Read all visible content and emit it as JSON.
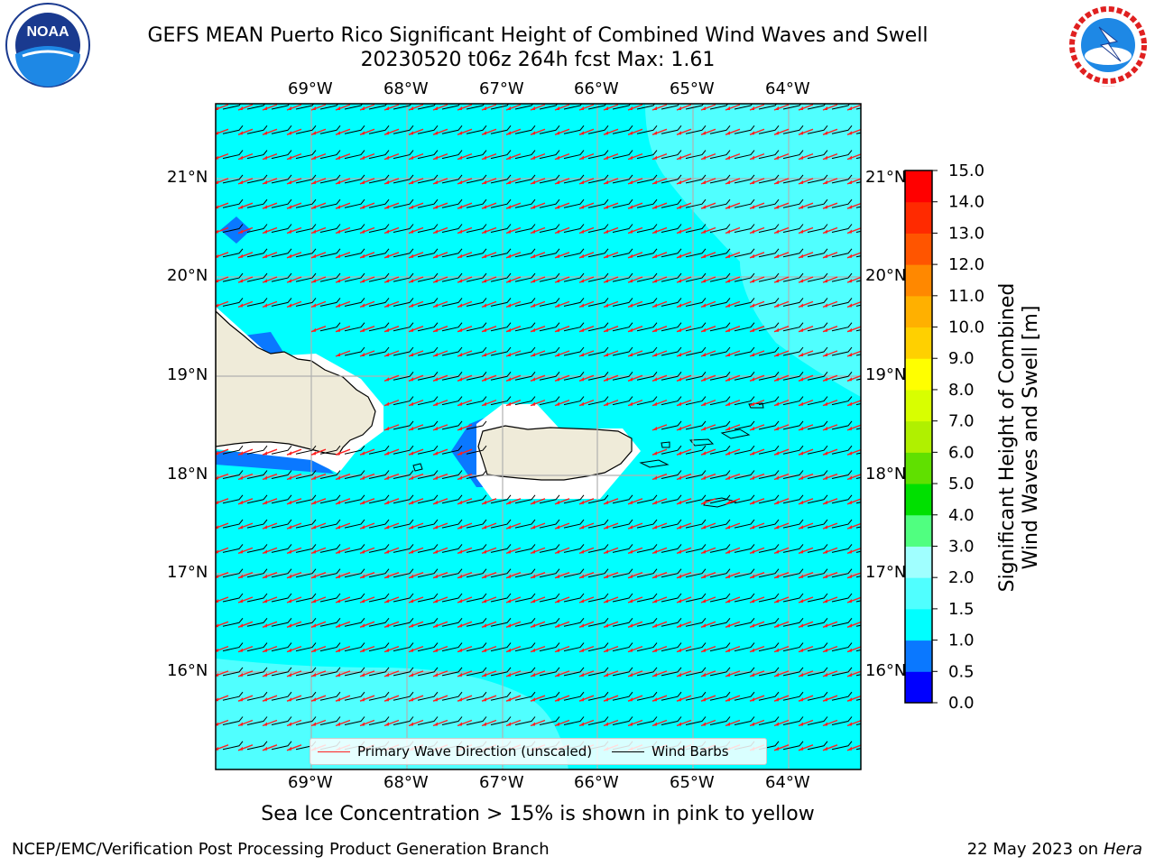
{
  "title_line1": "GEFS MEAN Puerto Rico Significant Height of Combined Wind Waves and Swell",
  "title_line2": "20230520 t06z 264h fcst   Max: 1.61",
  "lon_ticks": [
    "69°W",
    "68°W",
    "67°W",
    "66°W",
    "65°W",
    "64°W"
  ],
  "lat_ticks": [
    "21°N",
    "20°N",
    "19°N",
    "18°N",
    "17°N",
    "16°N"
  ],
  "legend": {
    "primary_wave": "Primary Wave Direction (unscaled)",
    "wind_barbs": "Wind Barbs",
    "primary_wave_color": "#ff2020",
    "wind_barbs_color": "#000000"
  },
  "colorbar": {
    "label_line1": "Significant Height of Combined",
    "label_line2": "Wind Waves and Swell [m]",
    "ticks": [
      "0.0",
      "0.5",
      "1.0",
      "1.5",
      "2.0",
      "3.0",
      "4.0",
      "5.0",
      "6.0",
      "7.0",
      "8.0",
      "9.0",
      "10.0",
      "11.0",
      "12.0",
      "13.0",
      "14.0",
      "15.0"
    ],
    "colors": [
      "#0000ff",
      "#0a78ff",
      "#00ffff",
      "#50ffff",
      "#a0ffff",
      "#50ff80",
      "#00e000",
      "#60e000",
      "#b0f000",
      "#d8ff00",
      "#ffff00",
      "#ffd000",
      "#ffb000",
      "#ff8800",
      "#ff5500",
      "#ff2a00",
      "#ff0000"
    ]
  },
  "map": {
    "ocean_color": "#00ffff",
    "land_color": "#efebd9",
    "lighter_wave_color": "#50ffff",
    "grid_color": "#b0b0b0"
  },
  "caption": "Sea Ice Concentration > 15% is shown in pink to yellow",
  "footer_left": "NCEP/EMC/Verification Post Processing Product Generation Branch",
  "footer_date": "22 May 2023 on",
  "footer_machine": "Hera",
  "logos": {
    "noaa_text": "NOAA",
    "nws_text": "NATIONAL WEATHER SERVICE"
  }
}
